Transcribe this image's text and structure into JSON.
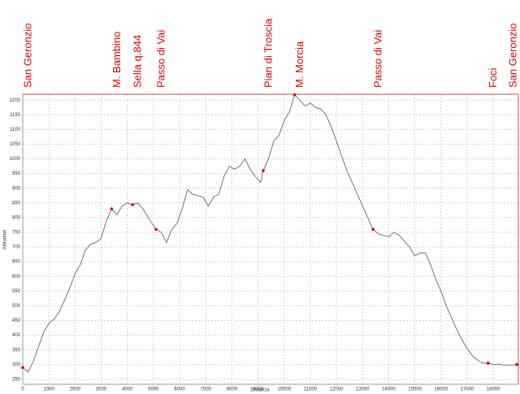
{
  "chart_data": {
    "type": "line",
    "x_label": "Distanza",
    "y_label": "Altitudine",
    "x": [
      0,
      200,
      400,
      600,
      800,
      1000,
      1200,
      1400,
      1600,
      1800,
      2000,
      2200,
      2400,
      2600,
      2800,
      3000,
      3200,
      3400,
      3600,
      3800,
      4000,
      4200,
      4400,
      4600,
      4800,
      5100,
      5300,
      5500,
      5700,
      5900,
      6100,
      6300,
      6500,
      6700,
      6900,
      7100,
      7300,
      7500,
      7700,
      7900,
      8100,
      8300,
      8500,
      8700,
      8900,
      9100,
      9200,
      9400,
      9600,
      9800,
      10000,
      10200,
      10400,
      10600,
      10800,
      11000,
      11200,
      11400,
      11600,
      11800,
      12000,
      12200,
      12400,
      12600,
      12800,
      13000,
      13200,
      13400,
      13600,
      13800,
      14000,
      14200,
      14400,
      14600,
      14800,
      15000,
      15200,
      15400,
      15600,
      15800,
      16000,
      16200,
      16400,
      16600,
      16800,
      17000,
      17200,
      17400,
      17600,
      17800,
      18000,
      18200,
      18400,
      18600,
      18900
    ],
    "series": [
      {
        "color": "#555555",
        "values": [
          290,
          275,
          310,
          360,
          410,
          440,
          455,
          480,
          520,
          560,
          610,
          640,
          690,
          710,
          715,
          730,
          790,
          830,
          810,
          840,
          850,
          844,
          850,
          830,
          800,
          760,
          750,
          715,
          760,
          780,
          830,
          895,
          880,
          875,
          870,
          840,
          870,
          880,
          940,
          975,
          965,
          975,
          1000,
          965,
          940,
          920,
          960,
          1000,
          1060,
          1080,
          1130,
          1160,
          1218,
          1200,
          1180,
          1190,
          1175,
          1170,
          1150,
          1110,
          1060,
          1010,
          960,
          920,
          880,
          840,
          800,
          760,
          745,
          740,
          735,
          750,
          740,
          720,
          700,
          670,
          680,
          680,
          640,
          590,
          550,
          500,
          460,
          420,
          385,
          355,
          330,
          315,
          305,
          305,
          300,
          302,
          298,
          297,
          300
        ]
      }
    ],
    "waypoints": {
      "color": "#e00000",
      "labels": [
        "San Geronzio",
        "M. Bambino",
        "Sella q.844",
        "Passo di Vai",
        "Pian di Troscia",
        "M. Morcia",
        "Passo di Vai",
        "Foci",
        "San Geronzio"
      ],
      "x": [
        0,
        3400,
        4200,
        5100,
        9200,
        10400,
        13400,
        17800,
        18900
      ],
      "values": [
        290,
        830,
        844,
        760,
        960,
        1218,
        760,
        305,
        300
      ]
    },
    "xlim": [
      0,
      18960
    ],
    "ylim": [
      233,
      1220
    ],
    "xticks": [
      0,
      1000,
      2000,
      3000,
      4000,
      5000,
      6000,
      7000,
      8000,
      9000,
      10000,
      11000,
      12000,
      13000,
      14000,
      15000,
      16000,
      17000,
      18000
    ],
    "yticks": [
      250,
      300,
      350,
      400,
      450,
      500,
      550,
      600,
      650,
      700,
      750,
      800,
      850,
      900,
      950,
      1000,
      1050,
      1100,
      1150,
      1200
    ],
    "grid": true
  }
}
